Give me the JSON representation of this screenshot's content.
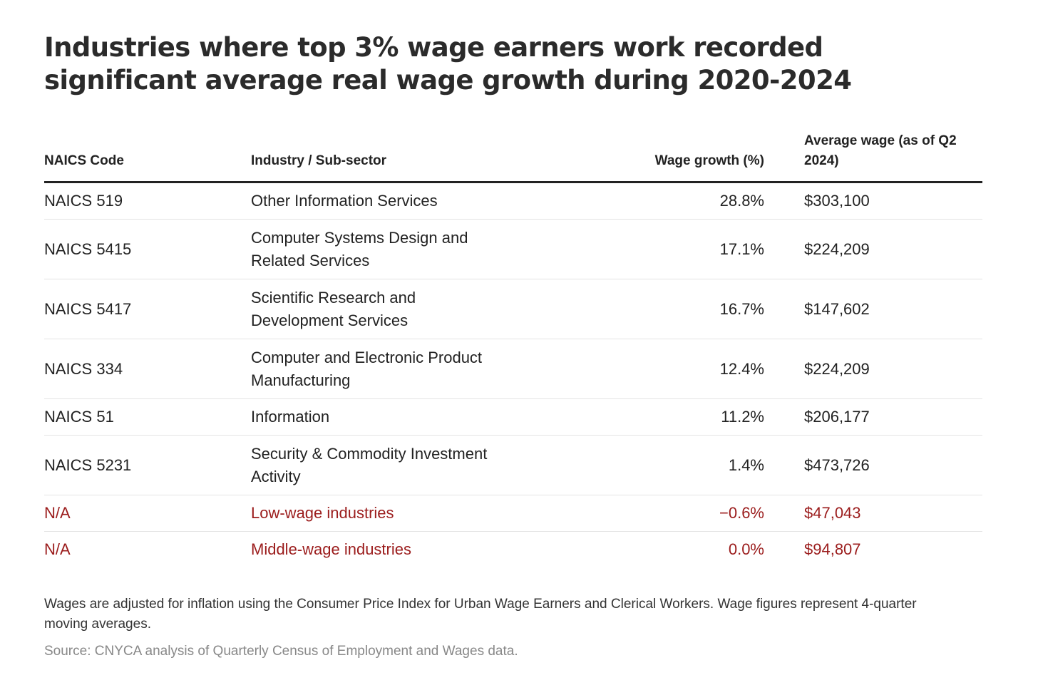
{
  "chart_data": {
    "type": "table",
    "title": "Industries where top 3% wage earners work recorded significant average real wage growth during 2020-2024",
    "columns": [
      "NAICS Code",
      "Industry / Sub-sector",
      "Wage growth (%)",
      "Average wage (as of Q2 2024)"
    ],
    "rows": [
      {
        "code": "NAICS 519",
        "industry": "Other Information Services",
        "growth": "28.8%",
        "wage": "$303,100",
        "highlight": false
      },
      {
        "code": "NAICS 5415",
        "industry": "Computer Systems Design and Related Services",
        "growth": "17.1%",
        "wage": "$224,209",
        "highlight": false
      },
      {
        "code": "NAICS 5417",
        "industry": "Scientific Research and Development Services",
        "growth": "16.7%",
        "wage": "$147,602",
        "highlight": false
      },
      {
        "code": "NAICS 334",
        "industry": "Computer and Electronic Product Manufacturing",
        "growth": "12.4%",
        "wage": "$224,209",
        "highlight": false
      },
      {
        "code": "NAICS 51",
        "industry": "Information",
        "growth": "11.2%",
        "wage": "$206,177",
        "highlight": false
      },
      {
        "code": "NAICS 5231",
        "industry": "Security & Commodity Investment Activity",
        "growth": "1.4%",
        "wage": "$473,726",
        "highlight": false
      },
      {
        "code": "N/A",
        "industry": "Low-wage industries",
        "growth": "−0.6%",
        "wage": "$47,043",
        "highlight": true
      },
      {
        "code": "N/A",
        "industry": "Middle-wage industries",
        "growth": "0.0%",
        "wage": "$94,807",
        "highlight": true
      }
    ],
    "note": "Wages are adjusted for inflation using the Consumer Price Index for Urban Wage Earners and Clerical Workers. Wage figures represent 4-quarter moving averages.",
    "source": "Source: CNYCA analysis of Quarterly Census of Employment and Wages data.",
    "colors": {
      "text": "#222222",
      "highlight": "#9b1c1c",
      "source": "#888888",
      "rule": "#222222",
      "divider": "#e3e3e3"
    }
  }
}
